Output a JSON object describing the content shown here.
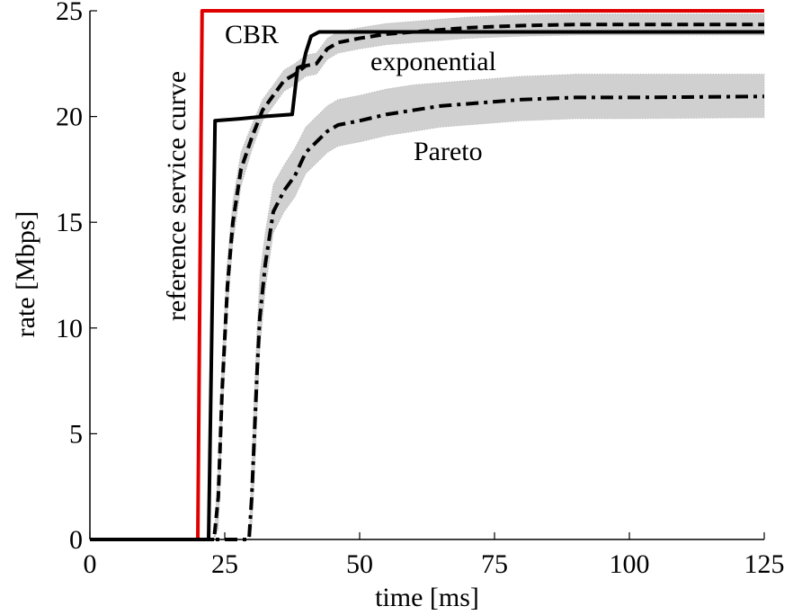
{
  "chart_data": {
    "type": "line",
    "title": "",
    "xlabel": "time [ms]",
    "ylabel": "rate [Mbps]",
    "xlim": [
      0,
      125
    ],
    "ylim": [
      0,
      25
    ],
    "xticks": [
      0,
      25,
      50,
      75,
      100,
      125
    ],
    "yticks": [
      0,
      5,
      10,
      15,
      20,
      25
    ],
    "grid": false,
    "series": [
      {
        "name": "reference service curve",
        "color": "#e00000",
        "style": "solid",
        "points": [
          [
            0,
            0
          ],
          [
            20,
            0
          ],
          [
            20.8,
            25
          ],
          [
            125,
            25
          ]
        ]
      },
      {
        "name": "CBR",
        "color": "#000000",
        "style": "solid",
        "points": [
          [
            0,
            0
          ],
          [
            22,
            0
          ],
          [
            23.2,
            19.8
          ],
          [
            28,
            19.9
          ],
          [
            32,
            20.0
          ],
          [
            37.5,
            20.1
          ],
          [
            38.5,
            22.3
          ],
          [
            39.5,
            22.4
          ],
          [
            40,
            23
          ],
          [
            41,
            23.8
          ],
          [
            42.5,
            24.0
          ],
          [
            125,
            24.0
          ]
        ]
      },
      {
        "name": "exponential",
        "color": "#000000",
        "style": "dashed",
        "points": [
          [
            0,
            0
          ],
          [
            23,
            0
          ],
          [
            23.8,
            2
          ],
          [
            24.5,
            7
          ],
          [
            25.5,
            12
          ],
          [
            26.5,
            15
          ],
          [
            28,
            17.5
          ],
          [
            30,
            19
          ],
          [
            32,
            20.3
          ],
          [
            34,
            21
          ],
          [
            36,
            21.7
          ],
          [
            38,
            22
          ],
          [
            40,
            22.4
          ],
          [
            42,
            22.5
          ],
          [
            44,
            23.2
          ],
          [
            46,
            23.5
          ],
          [
            50,
            23.7
          ],
          [
            55,
            23.9
          ],
          [
            60,
            24.0
          ],
          [
            70,
            24.2
          ],
          [
            80,
            24.3
          ],
          [
            90,
            24.35
          ],
          [
            100,
            24.35
          ],
          [
            125,
            24.35
          ]
        ],
        "band": [
          [
            23,
            0,
            0
          ],
          [
            23.8,
            0.5,
            3.5
          ],
          [
            24.5,
            5.5,
            8.5
          ],
          [
            25.5,
            10.8,
            13.2
          ],
          [
            26.5,
            14,
            16
          ],
          [
            28,
            16.7,
            18.3
          ],
          [
            30,
            18.4,
            19.6
          ],
          [
            32,
            19.8,
            20.8
          ],
          [
            34,
            20.5,
            21.5
          ],
          [
            36,
            21.2,
            22.2
          ],
          [
            38,
            21.5,
            22.5
          ],
          [
            40,
            21.9,
            22.9
          ],
          [
            42,
            22.0,
            23.0
          ],
          [
            44,
            22.7,
            23.7
          ],
          [
            46,
            23.0,
            24.0
          ],
          [
            50,
            23.2,
            24.2
          ],
          [
            55,
            23.4,
            24.4
          ],
          [
            60,
            23.5,
            24.5
          ],
          [
            70,
            23.7,
            24.7
          ],
          [
            80,
            23.8,
            24.8
          ],
          [
            90,
            23.85,
            24.85
          ],
          [
            100,
            23.85,
            24.85
          ],
          [
            125,
            23.85,
            24.85
          ]
        ]
      },
      {
        "name": "Pareto",
        "color": "#000000",
        "style": "dashdot",
        "points": [
          [
            0,
            0
          ],
          [
            29.5,
            0
          ],
          [
            30,
            2
          ],
          [
            30.5,
            5
          ],
          [
            31,
            8
          ],
          [
            31.5,
            10.5
          ],
          [
            32.5,
            13
          ],
          [
            34,
            15.5
          ],
          [
            36,
            16.5
          ],
          [
            38,
            17.2
          ],
          [
            40,
            18.3
          ],
          [
            42,
            18.8
          ],
          [
            44,
            19.3
          ],
          [
            46,
            19.6
          ],
          [
            50,
            19.8
          ],
          [
            55,
            20.1
          ],
          [
            60,
            20.3
          ],
          [
            65,
            20.5
          ],
          [
            70,
            20.6
          ],
          [
            75,
            20.7
          ],
          [
            80,
            20.8
          ],
          [
            90,
            20.9
          ],
          [
            100,
            20.9
          ],
          [
            125,
            20.95
          ]
        ],
        "band": [
          [
            29.5,
            0,
            0
          ],
          [
            30,
            0.5,
            3.5
          ],
          [
            30.5,
            3,
            7
          ],
          [
            31,
            6,
            10
          ],
          [
            31.5,
            9,
            12.5
          ],
          [
            32.5,
            11.8,
            14.5
          ],
          [
            34,
            14.5,
            16.8
          ],
          [
            36,
            15.5,
            17.7
          ],
          [
            38,
            16.2,
            18.5
          ],
          [
            40,
            17.3,
            19.5
          ],
          [
            42,
            17.8,
            20.0
          ],
          [
            44,
            18.3,
            20.5
          ],
          [
            46,
            18.6,
            20.8
          ],
          [
            50,
            18.8,
            21.0
          ],
          [
            55,
            19.1,
            21.3
          ],
          [
            60,
            19.3,
            21.5
          ],
          [
            65,
            19.5,
            21.6
          ],
          [
            70,
            19.6,
            21.7
          ],
          [
            75,
            19.7,
            21.8
          ],
          [
            80,
            19.8,
            21.9
          ],
          [
            90,
            19.9,
            22.0
          ],
          [
            100,
            19.9,
            22.0
          ],
          [
            125,
            19.95,
            22.0
          ]
        ]
      }
    ],
    "annotations": {
      "reference": "reference service curve",
      "cbr": "CBR",
      "exponential": "exponential",
      "pareto": "Pareto"
    }
  }
}
